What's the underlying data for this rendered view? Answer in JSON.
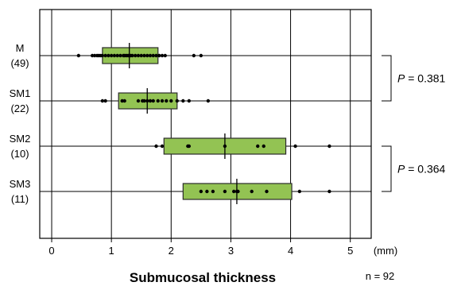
{
  "chart_data": {
    "type": "box-strip",
    "title": "Submucosal thickness",
    "xlabel": "Submucosal thickness",
    "unit_label": "(mm)",
    "n_label": "n = 92",
    "xlim": [
      -0.2,
      5.35
    ],
    "xticks": [
      0,
      1,
      2,
      3,
      4,
      5
    ],
    "grid": true,
    "categories": [
      {
        "name": "M",
        "count": "(49)",
        "q1": 0.85,
        "median": 1.3,
        "q3": 1.78,
        "points": [
          0.45,
          0.68,
          0.72,
          0.76,
          0.79,
          0.82,
          0.85,
          0.9,
          0.95,
          1.0,
          1.05,
          1.1,
          1.15,
          1.2,
          1.22,
          1.25,
          1.28,
          1.3,
          1.32,
          1.35,
          1.4,
          1.45,
          1.5,
          1.55,
          1.6,
          1.65,
          1.7,
          1.75,
          1.8,
          1.85,
          1.9,
          2.38,
          2.5
        ]
      },
      {
        "name": "SM1",
        "count": "(22)",
        "q1": 1.12,
        "median": 1.6,
        "q3": 2.1,
        "points": [
          0.85,
          0.9,
          1.18,
          1.22,
          1.45,
          1.52,
          1.55,
          1.6,
          1.65,
          1.7,
          1.78,
          1.85,
          1.92,
          2.0,
          2.1,
          2.2,
          2.3,
          2.62
        ]
      },
      {
        "name": "SM2",
        "count": "(10)",
        "q1": 1.88,
        "median": 2.9,
        "q3": 3.92,
        "points": [
          1.75,
          1.85,
          2.28,
          2.3,
          2.9,
          3.45,
          3.55,
          4.08,
          4.65
        ]
      },
      {
        "name": "SM3",
        "count": "(11)",
        "q1": 2.2,
        "median": 3.1,
        "q3": 4.02,
        "points": [
          2.5,
          2.6,
          2.7,
          2.9,
          3.05,
          3.1,
          3.12,
          3.35,
          3.6,
          4.15,
          4.65
        ]
      }
    ],
    "comparisons": [
      {
        "groups": [
          "M",
          "SM1"
        ],
        "label_prefix": "P",
        "label_value": " = 0.381"
      },
      {
        "groups": [
          "SM2",
          "SM3"
        ],
        "label_prefix": "P",
        "label_value": " = 0.364"
      }
    ],
    "colors": {
      "box_fill": "#93c353",
      "box_stroke": "#2b2b2b",
      "point": "#000000",
      "grid": "#000000"
    }
  }
}
